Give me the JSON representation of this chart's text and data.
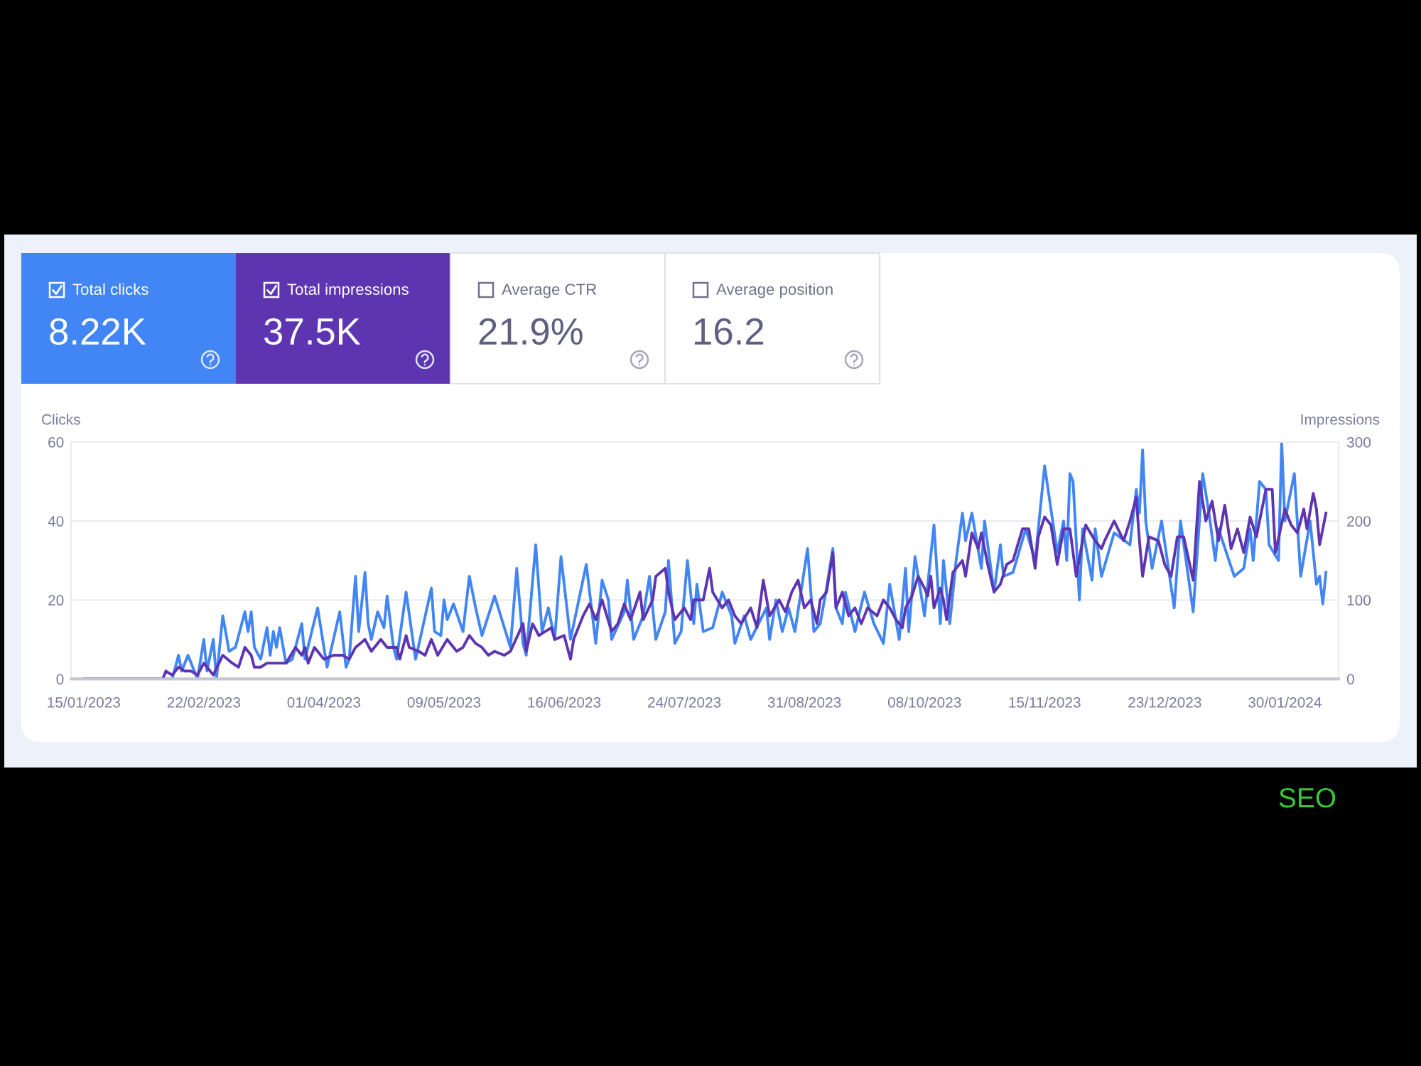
{
  "chart_data": {
    "type": "line",
    "ylabel": "Clicks",
    "y2label": "Impressions",
    "xlim": [
      "2023-01-11",
      "2024-02-16"
    ],
    "xticks": [
      {
        "value": "2023-01-15",
        "label": "15/01/2023"
      },
      {
        "value": "2023-02-22",
        "label": "22/02/2023"
      },
      {
        "value": "2023-04-01",
        "label": "01/04/2023"
      },
      {
        "value": "2023-05-09",
        "label": "09/05/2023"
      },
      {
        "value": "2023-06-16",
        "label": "16/06/2023"
      },
      {
        "value": "2023-07-24",
        "label": "24/07/2023"
      },
      {
        "value": "2023-08-31",
        "label": "31/08/2023"
      },
      {
        "value": "2023-10-08",
        "label": "08/10/2023"
      },
      {
        "value": "2023-11-15",
        "label": "15/11/2023"
      },
      {
        "value": "2023-12-23",
        "label": "23/12/2023"
      },
      {
        "value": "2024-01-30",
        "label": "30/01/2024"
      }
    ],
    "ylim": [
      0,
      60
    ],
    "yticks": [
      0,
      20,
      40,
      60
    ],
    "y2lim": [
      0,
      300
    ],
    "y2ticks": [
      0,
      100,
      200,
      300
    ],
    "grid": "y",
    "legend": "top left",
    "line_style": "solid",
    "series": [
      {
        "name": "Total clicks",
        "color": "#4285f4",
        "x": [
          "2023-01-15",
          "2023-02-09",
          "2023-02-12",
          "2023-02-14",
          "2023-02-15",
          "2023-02-17",
          "2023-02-20",
          "2023-02-22",
          "2023-02-23",
          "2023-02-25",
          "2023-02-26",
          "2023-02-28",
          "2023-03-02",
          "2023-03-04",
          "2023-03-07",
          "2023-03-08",
          "2023-03-09",
          "2023-03-10",
          "2023-03-12",
          "2023-03-14",
          "2023-03-15",
          "2023-03-16",
          "2023-03-17",
          "2023-03-18",
          "2023-03-20",
          "2023-03-22",
          "2023-03-25",
          "2023-03-26",
          "2023-03-30",
          "2023-04-02",
          "2023-04-06",
          "2023-04-08",
          "2023-04-09",
          "2023-04-11",
          "2023-04-12",
          "2023-04-14",
          "2023-04-15",
          "2023-04-16",
          "2023-04-18",
          "2023-04-20",
          "2023-04-21",
          "2023-04-23",
          "2023-04-24",
          "2023-04-27",
          "2023-04-30",
          "2023-05-05",
          "2023-05-06",
          "2023-05-08",
          "2023-05-09",
          "2023-05-10",
          "2023-05-12",
          "2023-05-15",
          "2023-05-17",
          "2023-05-19",
          "2023-05-21",
          "2023-05-25",
          "2023-05-30",
          "2023-06-01",
          "2023-06-03",
          "2023-06-04",
          "2023-06-07",
          "2023-06-09",
          "2023-06-11",
          "2023-06-13",
          "2023-06-15",
          "2023-06-18",
          "2023-06-23",
          "2023-06-26",
          "2023-06-28",
          "2023-06-30",
          "2023-07-01",
          "2023-07-05",
          "2023-07-06",
          "2023-07-08",
          "2023-07-11",
          "2023-07-13",
          "2023-07-15",
          "2023-07-18",
          "2023-07-19",
          "2023-07-21",
          "2023-07-23",
          "2023-07-25",
          "2023-07-27",
          "2023-07-28",
          "2023-07-30",
          "2023-08-02",
          "2023-08-05",
          "2023-08-08",
          "2023-08-09",
          "2023-08-12",
          "2023-08-14",
          "2023-08-19",
          "2023-08-20",
          "2023-08-22",
          "2023-08-24",
          "2023-08-26",
          "2023-08-28",
          "2023-09-01",
          "2023-09-03",
          "2023-09-05",
          "2023-09-07",
          "2023-09-09",
          "2023-09-10",
          "2023-09-12",
          "2023-09-13",
          "2023-09-16",
          "2023-09-19",
          "2023-09-22",
          "2023-09-25",
          "2023-09-27",
          "2023-09-30",
          "2023-10-02",
          "2023-10-03",
          "2023-10-05",
          "2023-10-08",
          "2023-10-11",
          "2023-10-13",
          "2023-10-14",
          "2023-10-16",
          "2023-10-18",
          "2023-10-20",
          "2023-10-21",
          "2023-10-23",
          "2023-10-26",
          "2023-10-27",
          "2023-10-30",
          "2023-11-01",
          "2023-11-02",
          "2023-11-05",
          "2023-11-09",
          "2023-11-12",
          "2023-11-15",
          "2023-11-19",
          "2023-11-21",
          "2023-11-22",
          "2023-11-23",
          "2023-11-24",
          "2023-11-26",
          "2023-11-27",
          "2023-11-30",
          "2023-12-01",
          "2023-12-03",
          "2023-12-07",
          "2023-12-12",
          "2023-12-14",
          "2023-12-15",
          "2023-12-16",
          "2023-12-17",
          "2023-12-19",
          "2023-12-22",
          "2023-12-26",
          "2023-12-28",
          "2024-01-01",
          "2024-01-04",
          "2024-01-06",
          "2024-01-08",
          "2024-01-09",
          "2024-01-14",
          "2024-01-17",
          "2024-01-19",
          "2024-01-20",
          "2024-01-22",
          "2024-01-24",
          "2024-01-25",
          "2024-01-28",
          "2024-01-29",
          "2024-01-30",
          "2024-02-02",
          "2024-02-04",
          "2024-02-07",
          "2024-02-09",
          "2024-02-10",
          "2024-02-11",
          "2024-02-12"
        ],
        "values": [
          0,
          0,
          0,
          6,
          2,
          6,
          0,
          10,
          2,
          10,
          0,
          16,
          7,
          8,
          17,
          12,
          17,
          8,
          5,
          13,
          6,
          12,
          8,
          13,
          4,
          5,
          14,
          5,
          18,
          3,
          17,
          3,
          5,
          26,
          12,
          27,
          14,
          10,
          17,
          13,
          21,
          8,
          5,
          22,
          5,
          23,
          12,
          11,
          20,
          15,
          19,
          12,
          26,
          18,
          11,
          21,
          8,
          28,
          9,
          6,
          34,
          12,
          18,
          10,
          31,
          10,
          29,
          9,
          25,
          20,
          10,
          17,
          25,
          10,
          16,
          26,
          10,
          17,
          30,
          9,
          12,
          30,
          14,
          24,
          12,
          13,
          22,
          16,
          9,
          16,
          10,
          18,
          10,
          20,
          12,
          18,
          12,
          33,
          12,
          14,
          23,
          33,
          18,
          14,
          22,
          12,
          22,
          14,
          9,
          24,
          10,
          28,
          12,
          31,
          16,
          39,
          14,
          30,
          14,
          30,
          42,
          35,
          42,
          28,
          40,
          22,
          34,
          26,
          27,
          38,
          30,
          54,
          32,
          40,
          30,
          52,
          50,
          20,
          38,
          25,
          38,
          26,
          37,
          34,
          48,
          42,
          58,
          40,
          28,
          40,
          18,
          40,
          17,
          52,
          42,
          30,
          38,
          26,
          28,
          38,
          30,
          50,
          48,
          34,
          30,
          60,
          40,
          52,
          26,
          40,
          24,
          26,
          19,
          27
        ]
      },
      {
        "name": "Total impressions",
        "color": "#5e35b1",
        "axis": "y2",
        "x": [
          "2023-01-15",
          "2023-02-09",
          "2023-02-10",
          "2023-02-12",
          "2023-02-14",
          "2023-02-16",
          "2023-02-18",
          "2023-02-20",
          "2023-02-22",
          "2023-02-23",
          "2023-02-25",
          "2023-02-28",
          "2023-03-03",
          "2023-03-05",
          "2023-03-07",
          "2023-03-09",
          "2023-03-10",
          "2023-03-12",
          "2023-03-14",
          "2023-03-17",
          "2023-03-20",
          "2023-03-23",
          "2023-03-25",
          "2023-03-26",
          "2023-03-27",
          "2023-03-29",
          "2023-04-01",
          "2023-04-04",
          "2023-04-07",
          "2023-04-09",
          "2023-04-11",
          "2023-04-14",
          "2023-04-16",
          "2023-04-19",
          "2023-04-21",
          "2023-04-24",
          "2023-04-25",
          "2023-04-27",
          "2023-04-28",
          "2023-05-01",
          "2023-05-03",
          "2023-05-05",
          "2023-05-07",
          "2023-05-10",
          "2023-05-13",
          "2023-05-15",
          "2023-05-17",
          "2023-05-19",
          "2023-05-21",
          "2023-05-23",
          "2023-05-25",
          "2023-05-28",
          "2023-05-30",
          "2023-06-03",
          "2023-06-04",
          "2023-06-06",
          "2023-06-08",
          "2023-06-10",
          "2023-06-12",
          "2023-06-13",
          "2023-06-16",
          "2023-06-18",
          "2023-06-19",
          "2023-06-22",
          "2023-06-24",
          "2023-06-26",
          "2023-06-28",
          "2023-07-01",
          "2023-07-03",
          "2023-07-05",
          "2023-07-07",
          "2023-07-10",
          "2023-07-11",
          "2023-07-14",
          "2023-07-15",
          "2023-07-18",
          "2023-07-19",
          "2023-07-21",
          "2023-07-24",
          "2023-07-26",
          "2023-07-27",
          "2023-07-30",
          "2023-08-01",
          "2023-08-02",
          "2023-08-05",
          "2023-08-07",
          "2023-08-09",
          "2023-08-11",
          "2023-08-14",
          "2023-08-16",
          "2023-08-18",
          "2023-08-20",
          "2023-08-23",
          "2023-08-25",
          "2023-08-27",
          "2023-08-29",
          "2023-08-31",
          "2023-09-02",
          "2023-09-04",
          "2023-09-05",
          "2023-09-07",
          "2023-09-09",
          "2023-09-10",
          "2023-09-12",
          "2023-09-14",
          "2023-09-16",
          "2023-09-18",
          "2023-09-20",
          "2023-09-23",
          "2023-09-25",
          "2023-09-27",
          "2023-09-29",
          "2023-10-01",
          "2023-10-02",
          "2023-10-04",
          "2023-10-06",
          "2023-10-08",
          "2023-10-09",
          "2023-10-10",
          "2023-10-11",
          "2023-10-13",
          "2023-10-14",
          "2023-10-15",
          "2023-10-17",
          "2023-10-20",
          "2023-10-21",
          "2023-10-23",
          "2023-10-25",
          "2023-10-26",
          "2023-10-28",
          "2023-10-30",
          "2023-11-01",
          "2023-11-03",
          "2023-11-05",
          "2023-11-08",
          "2023-11-10",
          "2023-11-12",
          "2023-11-13",
          "2023-11-15",
          "2023-11-17",
          "2023-11-19",
          "2023-11-21",
          "2023-11-23",
          "2023-11-25",
          "2023-11-27",
          "2023-11-28",
          "2023-12-01",
          "2023-12-03",
          "2023-12-04",
          "2023-12-07",
          "2023-12-10",
          "2023-12-12",
          "2023-12-14",
          "2023-12-15",
          "2023-12-16",
          "2023-12-18",
          "2023-12-21",
          "2023-12-23",
          "2023-12-25",
          "2023-12-27",
          "2023-12-29",
          "2024-01-01",
          "2024-01-03",
          "2024-01-05",
          "2024-01-07",
          "2024-01-09",
          "2024-01-11",
          "2024-01-13",
          "2024-01-15",
          "2024-01-17",
          "2024-01-19",
          "2024-01-21",
          "2024-01-24",
          "2024-01-26",
          "2024-01-27",
          "2024-01-30",
          "2024-02-01",
          "2024-02-03",
          "2024-02-05",
          "2024-02-06",
          "2024-02-08",
          "2024-02-09",
          "2024-02-10",
          "2024-02-12"
        ],
        "values": [
          0,
          0,
          10,
          5,
          15,
          10,
          10,
          5,
          20,
          15,
          5,
          30,
          20,
          15,
          40,
          30,
          15,
          15,
          20,
          20,
          20,
          40,
          30,
          40,
          20,
          40,
          25,
          30,
          30,
          25,
          40,
          50,
          35,
          50,
          40,
          40,
          25,
          55,
          40,
          35,
          30,
          50,
          30,
          50,
          35,
          40,
          55,
          45,
          40,
          30,
          35,
          30,
          35,
          70,
          35,
          70,
          55,
          60,
          65,
          50,
          55,
          25,
          50,
          80,
          95,
          75,
          100,
          60,
          70,
          95,
          75,
          110,
          75,
          100,
          130,
          140,
          110,
          75,
          90,
          75,
          100,
          100,
          140,
          110,
          90,
          100,
          80,
          70,
          90,
          65,
          125,
          80,
          100,
          85,
          110,
          125,
          90,
          100,
          70,
          100,
          110,
          160,
          90,
          110,
          80,
          90,
          70,
          90,
          80,
          100,
          90,
          75,
          65,
          90,
          105,
          130,
          115,
          105,
          130,
          90,
          115,
          100,
          75,
          135,
          150,
          130,
          185,
          165,
          185,
          145,
          110,
          120,
          145,
          150,
          190,
          190,
          140,
          180,
          205,
          195,
          145,
          190,
          190,
          130,
          175,
          195,
          175,
          165,
          175,
          200,
          175,
          200,
          230,
          175,
          130,
          180,
          175,
          145,
          130,
          180,
          180,
          125,
          250,
          200,
          225,
          175,
          220,
          165,
          190,
          160,
          205,
          180,
          240,
          240,
          160,
          215,
          195,
          185,
          215,
          190,
          235,
          215,
          170,
          210
        ]
      }
    ],
    "annotations": [
      "8.22K",
      "37.5K",
      "Average CTR",
      "21.9%",
      "Average position",
      "16.2",
      "SEO"
    ]
  }
}
